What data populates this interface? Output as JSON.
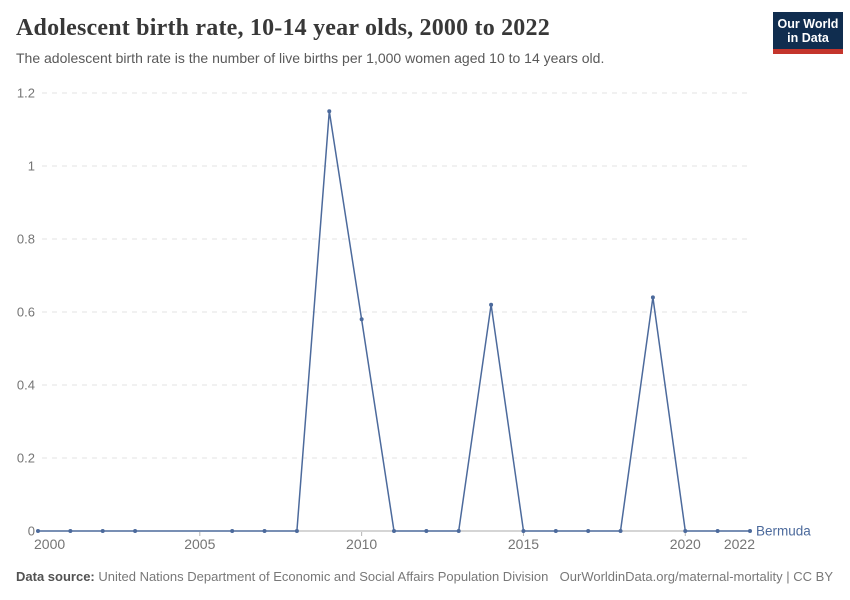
{
  "header": {
    "title": "Adolescent birth rate, 10-14 year olds, 2000 to 2022",
    "subtitle": "The adolescent birth rate is the number of live births per 1,000 women aged 10 to 14 years old."
  },
  "logo": {
    "line1": "Our World",
    "line2": "in Data",
    "bg_color": "#102d4f",
    "accent_color": "#c4352c"
  },
  "chart_data": {
    "type": "line",
    "title": "Adolescent birth rate, 10-14 year olds, 2000 to 2022",
    "xlabel": "",
    "ylabel": "",
    "x": [
      2000,
      2001,
      2002,
      2003,
      2004,
      2005,
      2006,
      2007,
      2008,
      2009,
      2010,
      2011,
      2012,
      2013,
      2014,
      2015,
      2016,
      2017,
      2018,
      2019,
      2020,
      2021,
      2022
    ],
    "series": [
      {
        "name": "Bermuda",
        "color": "#4c6a9c",
        "values": [
          0,
          0,
          0,
          0,
          0,
          0,
          0,
          0,
          0,
          1.15,
          0.58,
          0,
          0,
          0,
          0.62,
          0,
          0,
          0,
          0,
          0.64,
          0,
          0,
          0
        ]
      }
    ],
    "xlim": [
      2000,
      2022
    ],
    "ylim": [
      0,
      1.2
    ],
    "y_ticks": [
      {
        "value": 0,
        "label": "0"
      },
      {
        "value": 0.2,
        "label": "0.2"
      },
      {
        "value": 0.4,
        "label": "0.4"
      },
      {
        "value": 0.6,
        "label": "0.6"
      },
      {
        "value": 0.8,
        "label": "0.8"
      },
      {
        "value": 1,
        "label": "1"
      },
      {
        "value": 1.2,
        "label": "1.2"
      }
    ],
    "x_ticks": [
      {
        "value": 2000,
        "label": "2000"
      },
      {
        "value": 2005,
        "label": "2005"
      },
      {
        "value": 2010,
        "label": "2010"
      },
      {
        "value": 2015,
        "label": "2015"
      },
      {
        "value": 2020,
        "label": "2020"
      },
      {
        "value": 2022,
        "label": "2022"
      }
    ],
    "grid": "horizontal-dashed",
    "legend_position": "end-of-line-label",
    "end_label": "Bermuda",
    "marker_hidden_years": [
      2004,
      2005
    ]
  },
  "colors": {
    "gridline": "#e3e3e3",
    "axis_line": "#ababab",
    "tick_mark": "#b5b5b5",
    "tick_label": "#757575"
  },
  "footer": {
    "data_source_label": "Data source:",
    "data_source_value": "United Nations Department of Economic and Social Affairs Population Division",
    "credit": "OurWorldinData.org/maternal-mortality | CC BY"
  }
}
